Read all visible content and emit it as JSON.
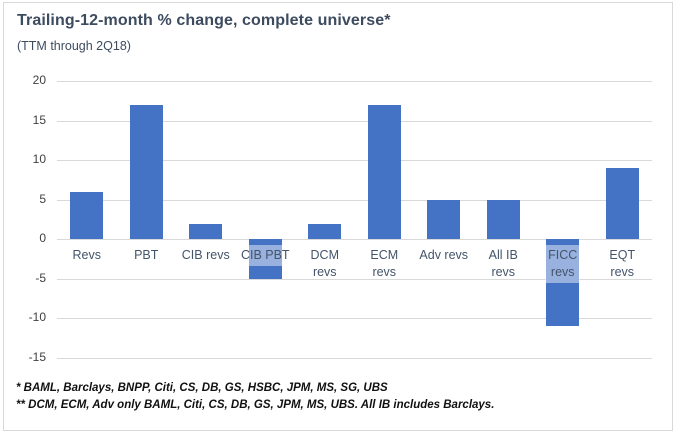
{
  "header": {
    "title": "Trailing-12-month % change, complete universe*",
    "subtitle": "(TTM through 2Q18)"
  },
  "chart_data": {
    "type": "bar",
    "title": "Trailing-12-month % change, complete universe*",
    "subtitle": "(TTM through 2Q18)",
    "categories": [
      "Revs",
      "PBT",
      "CIB revs",
      "CIB PBT",
      "DCM\nrevs",
      "ECM\nrevs",
      "Adv revs",
      "All IB\nrevs",
      "FICC\nrevs",
      "EQT\nrevs"
    ],
    "values": [
      6,
      17,
      2,
      -5,
      2,
      17,
      5,
      5,
      -11,
      9
    ],
    "ylim": [
      -15,
      20
    ],
    "yticks": [
      20,
      15,
      10,
      5,
      0,
      -5,
      -10,
      -15
    ],
    "grid": true,
    "legend": "none",
    "xlabel": "",
    "ylabel": "",
    "bar_color": "#4472C4",
    "gridline_color": "#D9D9D9",
    "tick_label_color": "#404040",
    "category_label_color": "#44546A",
    "highlighted_label_indices": [
      3,
      8
    ],
    "highlight_color": "rgba(255,255,255,0.45)"
  },
  "footnotes": {
    "line1": "* BAML, Barclays, BNPP, Citi, CS, DB, GS, HSBC, JPM, MS, SG, UBS",
    "line2": "** DCM, ECM, Adv only BAML, Citi, CS, DB, GS, JPM, MS, UBS. All IB includes Barclays."
  }
}
